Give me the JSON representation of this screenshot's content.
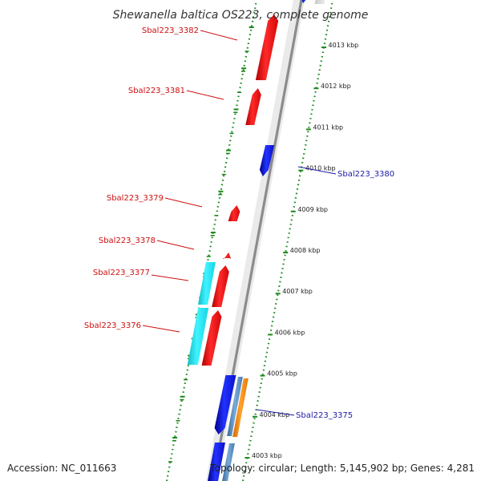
{
  "title": "Shewanella baltica OS223, complete genome",
  "accession_label": "Accession: NC_011663",
  "topology_label": "Topology: circular; Length: 5,145,902 bp; Genes: 4,281",
  "colors": {
    "forward": "#e8141c",
    "reverse": "#0e1be0",
    "cyan": "#1fe6f0",
    "steel": "#5f8fc4",
    "orange": "#ff8c0a",
    "backbone": "#8c8c8c",
    "ruler": "#1f8a1f"
  },
  "ruler_ticks": [
    {
      "label": "4013 kbp"
    },
    {
      "label": "4012 kbp"
    },
    {
      "label": "4011 kbp"
    },
    {
      "label": "4010 kbp"
    },
    {
      "label": "4009 kbp"
    },
    {
      "label": "4008 kbp"
    },
    {
      "label": "4007 kbp"
    },
    {
      "label": "4006 kbp"
    },
    {
      "label": "4005 kbp"
    },
    {
      "label": "4004 kbp"
    },
    {
      "label": "4003 kbp"
    }
  ],
  "gene_labels": [
    {
      "label": "Sbal223_3382",
      "strand": "forward"
    },
    {
      "label": "Sbal223_3381",
      "strand": "forward"
    },
    {
      "label": "Sbal223_3380",
      "strand": "reverse"
    },
    {
      "label": "Sbal223_3379",
      "strand": "forward"
    },
    {
      "label": "Sbal223_3378",
      "strand": "forward"
    },
    {
      "label": "Sbal223_3377",
      "strand": "forward"
    },
    {
      "label": "Sbal223_3376",
      "strand": "forward"
    },
    {
      "label": "Sbal223_3375",
      "strand": "reverse"
    }
  ]
}
